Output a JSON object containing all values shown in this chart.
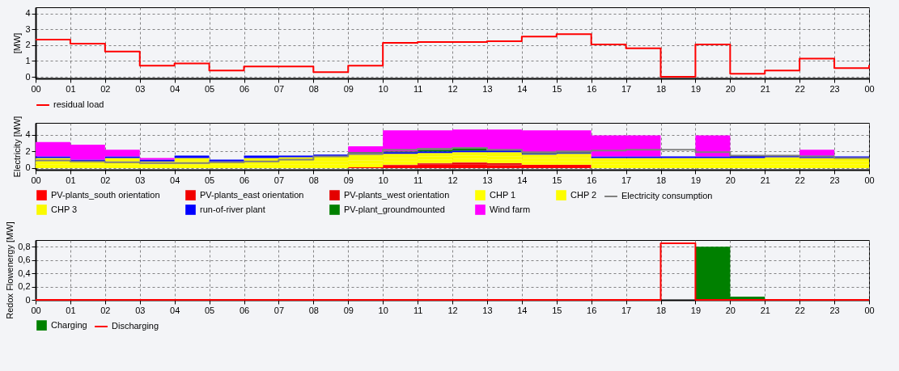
{
  "chart_data": [
    {
      "type": "step",
      "ylabel": "[MW]",
      "x": [
        0,
        1,
        2,
        3,
        4,
        5,
        6,
        7,
        8,
        9,
        10,
        11,
        12,
        13,
        14,
        15,
        16,
        17,
        18,
        19,
        20,
        21,
        22,
        23,
        24
      ],
      "xlim": [
        0,
        24
      ],
      "xticks": [
        {
          "value": 0,
          "label": "00"
        },
        {
          "value": 1,
          "label": "01"
        },
        {
          "value": 2,
          "label": "02"
        },
        {
          "value": 3,
          "label": "03"
        },
        {
          "value": 4,
          "label": "04"
        },
        {
          "value": 5,
          "label": "05"
        },
        {
          "value": 6,
          "label": "06"
        },
        {
          "value": 7,
          "label": "07"
        },
        {
          "value": 8,
          "label": "08"
        },
        {
          "value": 9,
          "label": "09"
        },
        10,
        11,
        12,
        13,
        14,
        15,
        16,
        17,
        18,
        19,
        20,
        21,
        22,
        23,
        {
          "value": 24,
          "label": "00"
        }
      ],
      "ylim": [
        -0.1,
        4.4
      ],
      "yticks": [
        0,
        1,
        2,
        3,
        4
      ],
      "grid": true,
      "legend": "bottom",
      "series": [
        {
          "name": "residual load",
          "color": "#ff0000",
          "values": [
            2.35,
            2.1,
            1.6,
            0.7,
            0.85,
            0.4,
            0.65,
            0.65,
            0.3,
            0.7,
            2.15,
            2.2,
            2.2,
            2.25,
            2.55,
            2.7,
            2.05,
            1.8,
            0.0,
            2.05,
            0.2,
            0.4,
            1.15,
            0.55,
            0.75
          ]
        }
      ]
    },
    {
      "type": "area",
      "stacked": true,
      "ylabel": "Electricity [MW]",
      "x": [
        0,
        1,
        2,
        3,
        4,
        5,
        6,
        7,
        8,
        9,
        10,
        11,
        12,
        13,
        14,
        15,
        16,
        17,
        18,
        19,
        20,
        21,
        22,
        23,
        24
      ],
      "xlim": [
        0,
        24
      ],
      "xticks": [
        {
          "value": 0,
          "label": "00"
        },
        {
          "value": 1,
          "label": "01"
        },
        {
          "value": 2,
          "label": "02"
        },
        {
          "value": 3,
          "label": "03"
        },
        {
          "value": 4,
          "label": "04"
        },
        {
          "value": 5,
          "label": "05"
        },
        {
          "value": 6,
          "label": "06"
        },
        {
          "value": 7,
          "label": "07"
        },
        {
          "value": 8,
          "label": "08"
        },
        {
          "value": 9,
          "label": "09"
        },
        10,
        11,
        12,
        13,
        14,
        15,
        16,
        17,
        18,
        19,
        20,
        21,
        22,
        23,
        {
          "value": 24,
          "label": "00"
        }
      ],
      "ylim": [
        -0.2,
        5.4
      ],
      "yticks": [
        0,
        2,
        4
      ],
      "grid": true,
      "legend": "bottom",
      "series": [
        {
          "name": "PV-plants_south orientation",
          "color": "#ff0000",
          "values": [
            0,
            0,
            0,
            0,
            0,
            0,
            0,
            0,
            0,
            0.1,
            0.3,
            0.4,
            0.4,
            0.3,
            0.4,
            0.4,
            0,
            0,
            0,
            0,
            0,
            0,
            0,
            0,
            0
          ]
        },
        {
          "name": "PV-plants_east orientation",
          "color": "#f20000",
          "values": [
            0,
            0,
            0,
            0,
            0,
            0,
            0,
            0,
            0,
            0,
            0.1,
            0.1,
            0.2,
            0.1,
            0,
            0,
            0,
            0,
            0,
            0,
            0,
            0,
            0,
            0,
            0
          ]
        },
        {
          "name": "PV-plants_west orientation",
          "color": "#e40000",
          "values": [
            0,
            0,
            0,
            0,
            0,
            0,
            0,
            0,
            0,
            0,
            0,
            0.1,
            0.1,
            0.2,
            0,
            0,
            0,
            0,
            0,
            0,
            0,
            0,
            0,
            0,
            0
          ]
        },
        {
          "name": "CHP 1",
          "color": "#ffff00",
          "values": [
            0.4,
            0.4,
            0.4,
            0.4,
            0.4,
            0.4,
            0.4,
            0.4,
            0.4,
            0.4,
            0.4,
            0.4,
            0.4,
            0.4,
            0.4,
            0.4,
            0.4,
            0.4,
            0.4,
            0.4,
            0.4,
            0.4,
            0.4,
            0.4,
            0.4
          ]
        },
        {
          "name": "CHP 2",
          "color": "#fdfd00",
          "values": [
            0.4,
            0.4,
            0.4,
            0.4,
            0.4,
            0.4,
            0.4,
            0.4,
            0.4,
            0.4,
            0.4,
            0.4,
            0.4,
            0.4,
            0.4,
            0.4,
            0.4,
            0.4,
            0.4,
            0.4,
            0.4,
            0.4,
            0.4,
            0.4,
            0.4
          ]
        },
        {
          "name": "CHP 3",
          "color": "#fafa00",
          "values": [
            0.4,
            0,
            0.4,
            0,
            0.4,
            0,
            0.4,
            0.5,
            0.6,
            0.7,
            0.5,
            0.4,
            0.4,
            0.5,
            0.4,
            0.5,
            0.4,
            0.4,
            0.4,
            0.4,
            0.4,
            0.5,
            0.4,
            0.4,
            0.4
          ]
        },
        {
          "name": "run-of-river plant",
          "color": "#0000ff",
          "values": [
            0.2,
            0.2,
            0.2,
            0.2,
            0.3,
            0.2,
            0.3,
            0.2,
            0.2,
            0.2,
            0.2,
            0.2,
            0.2,
            0.2,
            0.1,
            0.1,
            0.2,
            0.2,
            0.2,
            0.2,
            0.3,
            0.2,
            0.3,
            0.2,
            0.2
          ]
        },
        {
          "name": "PV-plant_groundmounted",
          "color": "#008000",
          "values": [
            0,
            0,
            0,
            0,
            0,
            0,
            0,
            0,
            0,
            0.1,
            0.1,
            0.2,
            0.2,
            0.1,
            0.1,
            0.1,
            0,
            0,
            0,
            0,
            0,
            0,
            0,
            0,
            0
          ]
        },
        {
          "name": "Wind farm",
          "color": "#ff00ff",
          "values": [
            1.7,
            1.8,
            0.8,
            0.2,
            0,
            0,
            0,
            0,
            0,
            0.7,
            2.5,
            2.3,
            2.3,
            2.4,
            2.7,
            2.6,
            2.5,
            2.5,
            0,
            2.5,
            0,
            0,
            0.7,
            0,
            0
          ]
        },
        {
          "name": "Electricity consumption",
          "type": "step",
          "color": "#808080",
          "values": [
            0.9,
            0.8,
            0.7,
            0.6,
            0.6,
            0.7,
            0.8,
            1.0,
            1.4,
            1.7,
            2.2,
            2.3,
            2.4,
            2.2,
            1.9,
            2.0,
            2.1,
            2.2,
            2.2,
            1.9,
            1.5,
            1.5,
            1.4,
            1.2,
            1.2
          ]
        }
      ]
    },
    {
      "type": "step",
      "ylabel": "Redox Flowenergy [MW]",
      "x": [
        0,
        1,
        2,
        3,
        4,
        5,
        6,
        7,
        8,
        9,
        10,
        11,
        12,
        13,
        14,
        15,
        16,
        17,
        18,
        19,
        20,
        21,
        22,
        23,
        24
      ],
      "xlim": [
        0,
        24
      ],
      "xticks": [
        {
          "value": 0,
          "label": "00"
        },
        {
          "value": 1,
          "label": "01"
        },
        {
          "value": 2,
          "label": "02"
        },
        {
          "value": 3,
          "label": "03"
        },
        {
          "value": 4,
          "label": "04"
        },
        {
          "value": 5,
          "label": "05"
        },
        {
          "value": 6,
          "label": "06"
        },
        {
          "value": 7,
          "label": "07"
        },
        {
          "value": 8,
          "label": "08"
        },
        {
          "value": 9,
          "label": "09"
        },
        10,
        11,
        12,
        13,
        14,
        15,
        16,
        17,
        18,
        19,
        20,
        21,
        22,
        23,
        {
          "value": 24,
          "label": "00"
        }
      ],
      "ylim": [
        0,
        0.9
      ],
      "yticks": [
        0,
        {
          "value": 0.2,
          "label": "0,2"
        },
        {
          "value": 0.4,
          "label": "0,4"
        },
        {
          "value": 0.6,
          "label": "0,6"
        },
        {
          "value": 0.8,
          "label": "0,8"
        }
      ],
      "grid": true,
      "legend": "bottom",
      "series": [
        {
          "name": "Discharging",
          "color": "#ff0000",
          "values": [
            0,
            0,
            0,
            0,
            0,
            0,
            0,
            0,
            0,
            0,
            0,
            0,
            0,
            0,
            0,
            0,
            0,
            0,
            0.85,
            0,
            0,
            0,
            0,
            0,
            0
          ]
        },
        {
          "name": "Charging",
          "type": "area",
          "color": "#008000",
          "values": [
            0,
            0,
            0,
            0,
            0,
            0,
            0,
            0,
            0,
            0,
            0,
            0,
            0,
            0,
            0,
            0,
            0,
            0,
            0,
            0.8,
            0.05,
            0,
            0,
            0,
            0
          ]
        }
      ]
    }
  ]
}
